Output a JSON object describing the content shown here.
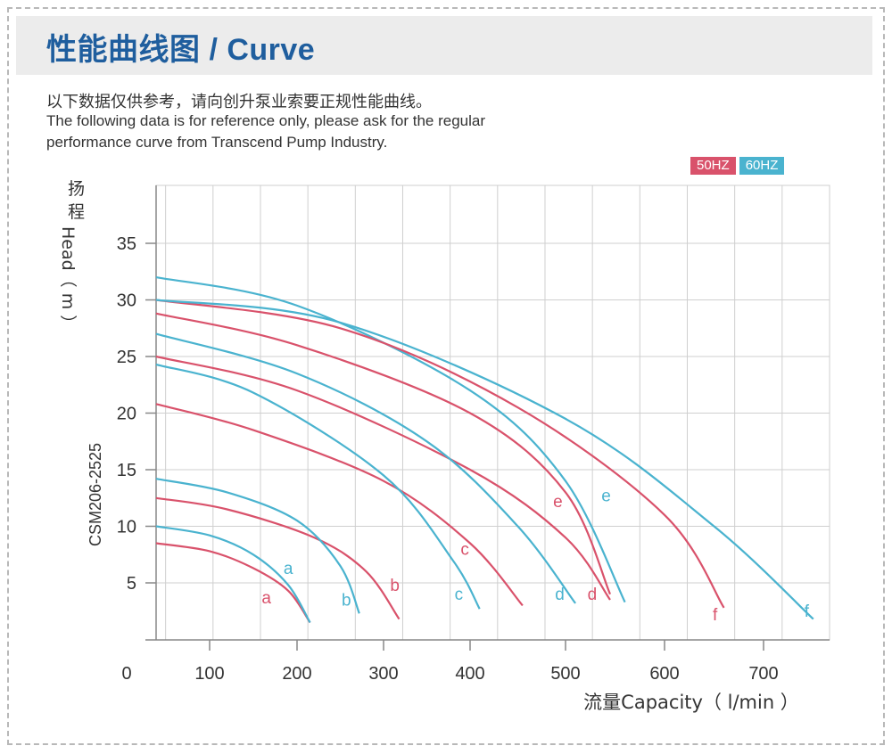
{
  "header": {
    "title": "性能曲线图 / Curve"
  },
  "notes": {
    "cn": "以下数据仅供参考，请向创升泵业索要正规性能曲线。",
    "en_line1": "The following data is for reference only, please ask for the regular",
    "en_line2": "performance curve from Transcend Pump Industry."
  },
  "colors": {
    "hz50": "#d9526b",
    "hz60": "#4ab3cf",
    "title": "#1f5e9e",
    "grid": "#cfcfcf"
  },
  "chart_data": {
    "type": "line",
    "title": "",
    "model": "CSM206-2525",
    "xlabel": "流量Capacity（ l/min ）",
    "ylabel": "扬程Head（ m ）",
    "xlim": [
      0,
      750
    ],
    "ylim": [
      0,
      40
    ],
    "xticks": [
      0,
      100,
      200,
      300,
      400,
      500,
      600,
      700
    ],
    "yticks": [
      5,
      10,
      15,
      20,
      25,
      30,
      35
    ],
    "grid": true,
    "legend": {
      "placement": "top-right",
      "entries": [
        "50HZ",
        "60HZ"
      ]
    },
    "series": [
      {
        "name": "a",
        "freq": "50HZ",
        "points": [
          [
            40,
            8.5
          ],
          [
            100,
            7.8
          ],
          [
            150,
            6.3
          ],
          [
            190,
            4.3
          ],
          [
            215,
            1.5
          ]
        ]
      },
      {
        "name": "a",
        "freq": "60HZ",
        "points": [
          [
            40,
            10.0
          ],
          [
            100,
            9.2
          ],
          [
            150,
            7.5
          ],
          [
            190,
            4.8
          ],
          [
            215,
            1.5
          ]
        ]
      },
      {
        "name": "b",
        "freq": "50HZ",
        "points": [
          [
            40,
            12.5
          ],
          [
            120,
            11.5
          ],
          [
            220,
            9.0
          ],
          [
            280,
            6.0
          ],
          [
            318,
            1.8
          ]
        ]
      },
      {
        "name": "b",
        "freq": "60HZ",
        "points": [
          [
            40,
            14.2
          ],
          [
            120,
            13.0
          ],
          [
            200,
            10.5
          ],
          [
            250,
            6.5
          ],
          [
            272,
            2.3
          ]
        ]
      },
      {
        "name": "c",
        "freq": "50HZ",
        "points": [
          [
            40,
            20.8
          ],
          [
            150,
            18.5
          ],
          [
            300,
            14.0
          ],
          [
            400,
            8.5
          ],
          [
            455,
            3.0
          ]
        ]
      },
      {
        "name": "c",
        "freq": "60HZ",
        "points": [
          [
            40,
            24.3
          ],
          [
            150,
            21.8
          ],
          [
            300,
            14.5
          ],
          [
            380,
            7.0
          ],
          [
            410,
            2.7
          ]
        ]
      },
      {
        "name": "d",
        "freq": "50HZ",
        "points": [
          [
            40,
            25.0
          ],
          [
            200,
            22.0
          ],
          [
            400,
            15.0
          ],
          [
            500,
            9.0
          ],
          [
            545,
            3.5
          ]
        ]
      },
      {
        "name": "d",
        "freq": "60HZ",
        "points": [
          [
            40,
            27.0
          ],
          [
            200,
            23.5
          ],
          [
            350,
            17.5
          ],
          [
            450,
            10.0
          ],
          [
            510,
            3.2
          ]
        ]
      },
      {
        "name": "e",
        "freq": "50HZ",
        "points": [
          [
            40,
            28.8
          ],
          [
            200,
            26.0
          ],
          [
            400,
            20.0
          ],
          [
            500,
            13.0
          ],
          [
            545,
            4.0
          ]
        ]
      },
      {
        "name": "e",
        "freq": "60HZ",
        "points": [
          [
            40,
            32.0
          ],
          [
            200,
            29.5
          ],
          [
            400,
            22.0
          ],
          [
            500,
            14.0
          ],
          [
            560,
            3.3
          ]
        ]
      },
      {
        "name": "f",
        "freq": "50HZ",
        "points": [
          [
            40,
            30.0
          ],
          [
            250,
            27.5
          ],
          [
            450,
            20.5
          ],
          [
            600,
            11.0
          ],
          [
            660,
            2.8
          ]
        ]
      },
      {
        "name": "f",
        "freq": "60HZ",
        "points": [
          [
            40,
            30.0
          ],
          [
            250,
            28.0
          ],
          [
            500,
            19.5
          ],
          [
            650,
            10.0
          ],
          [
            745,
            1.8
          ]
        ]
      }
    ],
    "curve_labels": [
      {
        "text": "a",
        "freq": "50HZ",
        "x": 165,
        "y": 3.2
      },
      {
        "text": "a",
        "freq": "60HZ",
        "x": 190,
        "y": 5.8
      },
      {
        "text": "b",
        "freq": "60HZ",
        "x": 257,
        "y": 3.0
      },
      {
        "text": "b",
        "freq": "50HZ",
        "x": 313,
        "y": 4.3
      },
      {
        "text": "c",
        "freq": "60HZ",
        "x": 387,
        "y": 3.5
      },
      {
        "text": "c",
        "freq": "50HZ",
        "x": 394,
        "y": 7.5
      },
      {
        "text": "d",
        "freq": "60HZ",
        "x": 494,
        "y": 3.5
      },
      {
        "text": "d",
        "freq": "50HZ",
        "x": 527,
        "y": 3.5
      },
      {
        "text": "e",
        "freq": "50HZ",
        "x": 492,
        "y": 11.7
      },
      {
        "text": "e",
        "freq": "60HZ",
        "x": 541,
        "y": 12.2
      },
      {
        "text": "f",
        "freq": "50HZ",
        "x": 651,
        "y": 1.7
      },
      {
        "text": "f",
        "freq": "60HZ",
        "x": 739,
        "y": 2.0
      }
    ]
  }
}
